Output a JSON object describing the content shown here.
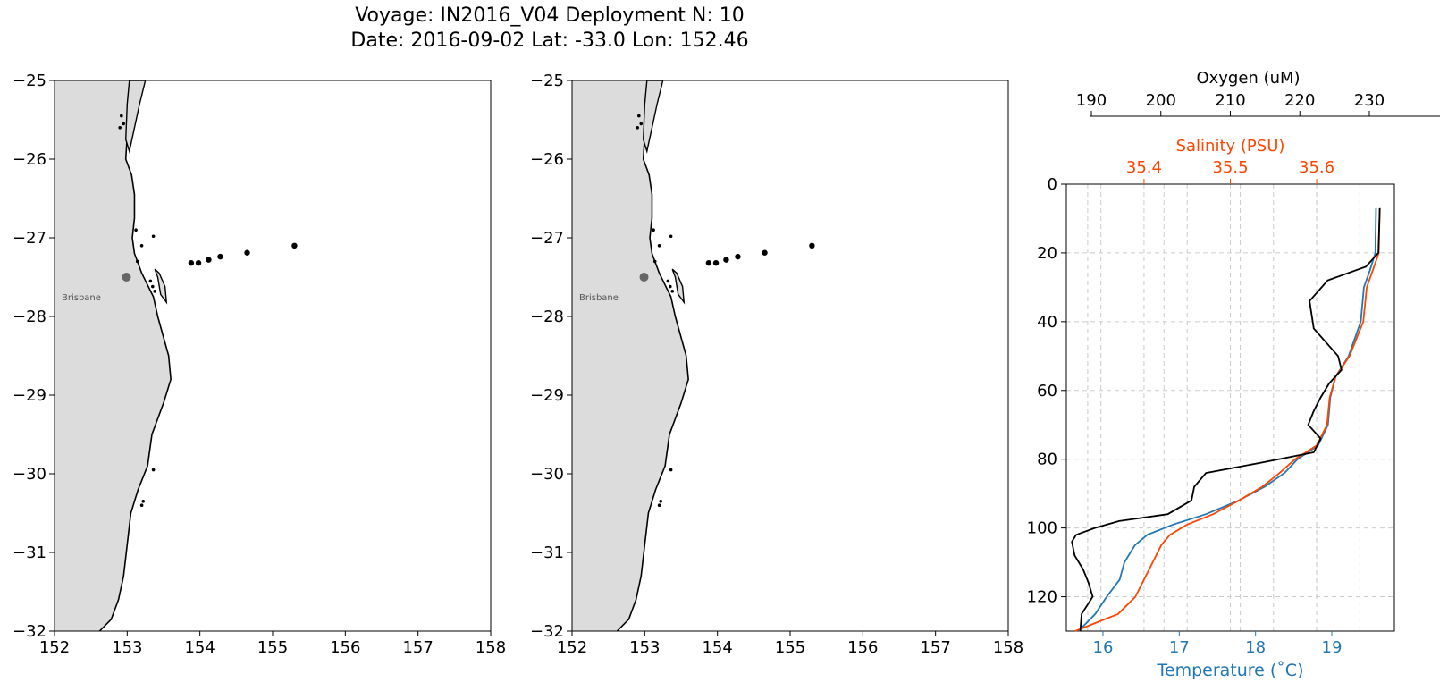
{
  "header": {
    "title_line1": "Voyage: IN2016_V04 Deployment N: 10",
    "title_line2": "Date: 2016-09-02 Lat: -33.0 Lon: 152.46"
  },
  "colors": {
    "land": "#dcdcdc",
    "coast": "#000000",
    "temperature": "#1f77b4",
    "salinity": "#ff4500",
    "oxygen": "#000000",
    "city_marker": "#666666",
    "grid": "#cccccc"
  },
  "chart_data": [
    {
      "type": "scatter",
      "name": "map-left",
      "xlim": [
        152,
        158
      ],
      "ylim": [
        -32,
        -25
      ],
      "x_ticks": [
        "152",
        "153",
        "154",
        "155",
        "156",
        "157",
        "158"
      ],
      "y_ticks": [
        "−25",
        "−26",
        "−27",
        "−28",
        "−29",
        "−30",
        "−31",
        "−32"
      ],
      "city": {
        "label": "Brisbane",
        "lon": 152.99,
        "lat": -27.5
      },
      "stations": [
        {
          "lon": 153.88,
          "lat": -27.32
        },
        {
          "lon": 153.98,
          "lat": -27.32
        },
        {
          "lon": 154.12,
          "lat": -27.28
        },
        {
          "lon": 154.28,
          "lat": -27.24
        },
        {
          "lon": 154.65,
          "lat": -27.19
        },
        {
          "lon": 155.3,
          "lat": -27.1
        }
      ]
    },
    {
      "type": "scatter",
      "name": "map-right",
      "xlim": [
        152,
        158
      ],
      "ylim": [
        -32,
        -25
      ],
      "x_ticks": [
        "152",
        "153",
        "154",
        "155",
        "156",
        "157",
        "158"
      ],
      "y_ticks": [
        "−25",
        "−26",
        "−27",
        "−28",
        "−29",
        "−30",
        "−31",
        "−32"
      ],
      "city": {
        "label": "Brisbane",
        "lon": 152.99,
        "lat": -27.5
      },
      "stations": [
        {
          "lon": 153.88,
          "lat": -27.32
        },
        {
          "lon": 153.98,
          "lat": -27.32
        },
        {
          "lon": 154.12,
          "lat": -27.28
        },
        {
          "lon": 154.28,
          "lat": -27.24
        },
        {
          "lon": 154.65,
          "lat": -27.19
        },
        {
          "lon": 155.3,
          "lat": -27.1
        }
      ]
    },
    {
      "type": "line",
      "name": "profile",
      "ylim": [
        130,
        0
      ],
      "y_ticks": [
        "0",
        "20",
        "40",
        "60",
        "80",
        "100",
        "120"
      ],
      "temperature_axis": {
        "label": "Temperature ($^{\\circ}$C)",
        "label_text": "Temperature (˚C)",
        "xlim": [
          15.52,
          19.82
        ],
        "ticks": [
          "16",
          "17",
          "18",
          "19"
        ]
      },
      "salinity_axis": {
        "label": "Salinity (PSU)",
        "xlim": [
          35.31,
          35.69
        ],
        "ticks": [
          "35.4",
          "35.5",
          "35.6"
        ]
      },
      "oxygen_axis": {
        "label": "Oxygen (uM)",
        "xlim": [
          186.4,
          233.6
        ],
        "ticks": [
          "190",
          "200",
          "210",
          "220",
          "230"
        ]
      },
      "series": [
        {
          "name": "Temperature",
          "axis": "temperature",
          "depth": [
            7,
            20,
            25,
            30,
            40,
            50,
            56,
            62,
            70,
            76,
            80,
            84,
            88,
            92,
            96,
            99,
            102,
            105,
            110,
            115,
            120,
            125,
            130
          ],
          "values": [
            19.58,
            19.57,
            19.5,
            19.42,
            19.38,
            19.22,
            19.05,
            18.98,
            18.95,
            18.82,
            18.55,
            18.38,
            18.12,
            17.78,
            17.35,
            16.92,
            16.58,
            16.42,
            16.28,
            16.22,
            16.05,
            15.9,
            15.68
          ]
        },
        {
          "name": "Salinity",
          "axis": "salinity",
          "depth": [
            7,
            20,
            25,
            30,
            40,
            50,
            56,
            62,
            70,
            76,
            80,
            84,
            88,
            92,
            96,
            99,
            102,
            105,
            110,
            115,
            120,
            125,
            130
          ],
          "values": [
            35.673,
            35.672,
            35.665,
            35.658,
            35.654,
            35.638,
            35.622,
            35.615,
            35.612,
            35.6,
            35.575,
            35.557,
            35.537,
            35.51,
            35.48,
            35.45,
            35.43,
            35.42,
            35.41,
            35.4,
            35.39,
            35.37,
            35.32
          ]
        },
        {
          "name": "Oxygen",
          "axis": "oxygen",
          "depth": [
            7,
            20,
            24,
            28,
            34,
            42,
            50,
            54,
            58,
            62,
            66,
            70,
            74,
            78,
            81,
            84,
            88,
            92,
            96,
            98,
            100,
            102,
            104,
            108,
            112,
            116,
            120,
            125,
            130
          ],
          "values": [
            231.5,
            231.3,
            229.5,
            224.0,
            221.4,
            222.0,
            225.5,
            226.0,
            224.2,
            223.0,
            222.0,
            221.2,
            223.0,
            222.0,
            214.5,
            206.5,
            204.8,
            204.4,
            201.0,
            194.0,
            190.5,
            187.8,
            187.2,
            187.6,
            188.8,
            189.6,
            190.2,
            188.6,
            188.4
          ]
        }
      ]
    }
  ]
}
